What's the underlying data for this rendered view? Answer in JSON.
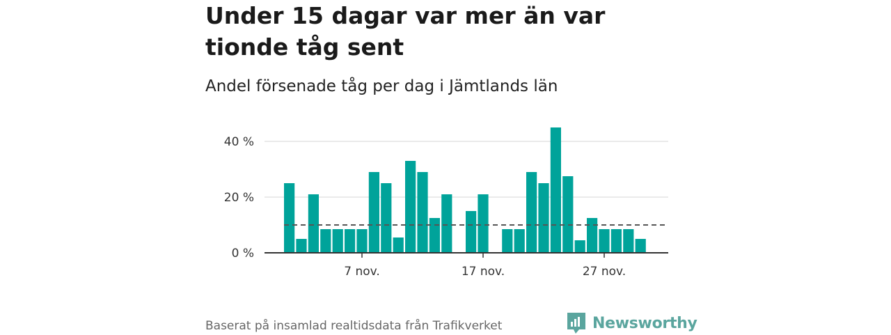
{
  "title": "Under 15 dagar var mer än var tionde tåg sent",
  "subtitle": "Andel försenade tåg per dag i Jämtlands län",
  "footer": "Baserat på insamlad realtidsdata från Trafikverket",
  "brand": {
    "name": "Newsworthy",
    "icon": "newsworthy-logo-icon"
  },
  "colors": {
    "bar": "#00a39a",
    "reference_line": "#555555",
    "grid": "#dddddd",
    "axis": "#333333"
  },
  "chart_data": {
    "type": "bar",
    "x": [
      "2023-11-01",
      "2023-11-02",
      "2023-11-03",
      "2023-11-04",
      "2023-11-05",
      "2023-11-06",
      "2023-11-07",
      "2023-11-08",
      "2023-11-09",
      "2023-11-10",
      "2023-11-11",
      "2023-11-12",
      "2023-11-13",
      "2023-11-14",
      "2023-11-15",
      "2023-11-16",
      "2023-11-17",
      "2023-11-18",
      "2023-11-19",
      "2023-11-20",
      "2023-11-21",
      "2023-11-22",
      "2023-11-23",
      "2023-11-24",
      "2023-11-25",
      "2023-11-26",
      "2023-11-27",
      "2023-11-28",
      "2023-11-29",
      "2023-11-30"
    ],
    "values": [
      25,
      5,
      21,
      8.5,
      8.5,
      8.5,
      8.5,
      29,
      25,
      5.5,
      33,
      29,
      12.5,
      21,
      null,
      15,
      21,
      null,
      8.5,
      8.5,
      29,
      25,
      45,
      27.5,
      4.5,
      12.5,
      8.5,
      8.5,
      8.5,
      5
    ],
    "reference_line": 10,
    "ylim": [
      0,
      45
    ],
    "yticks": [
      0,
      20,
      40
    ],
    "ytick_labels": [
      "0 %",
      "20 %",
      "40 %"
    ],
    "xticks": [
      "2023-11-07",
      "2023-11-17",
      "2023-11-27"
    ],
    "xtick_labels": [
      "7 nov.",
      "17 nov.",
      "27 nov."
    ],
    "grid": true,
    "xlabel": "",
    "ylabel": ""
  }
}
